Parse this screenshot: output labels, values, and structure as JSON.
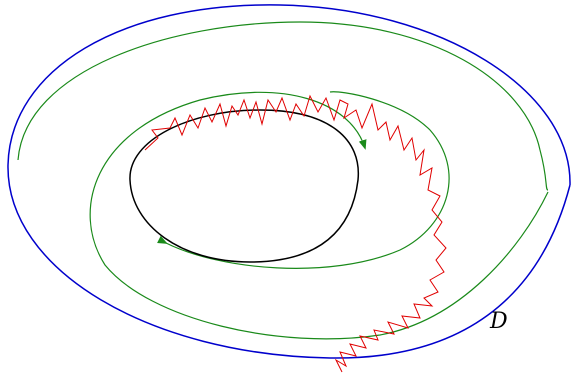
{
  "labels": {
    "domain": "D"
  }
}
